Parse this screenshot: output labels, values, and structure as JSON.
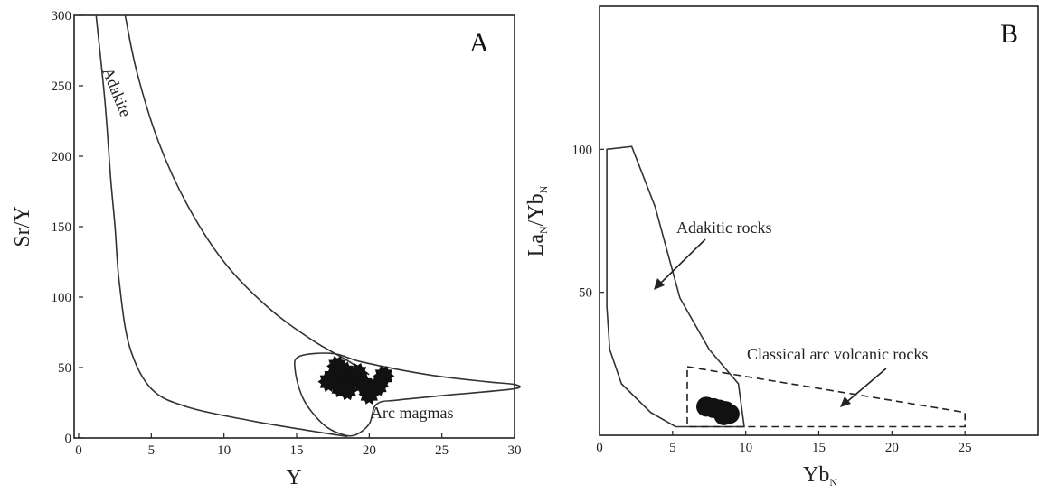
{
  "chart_data": [
    {
      "type": "scatter",
      "panel": "A",
      "xlabel": "Y",
      "ylabel": "Sr/Y",
      "xlim": [
        0,
        30
      ],
      "ylim": [
        0,
        300
      ],
      "xticks": [
        0,
        5,
        10,
        15,
        20,
        25,
        30
      ],
      "yticks": [
        0,
        50,
        100,
        150,
        200,
        250,
        300
      ],
      "grid": false,
      "annotations": [
        {
          "text": "Adakite"
        },
        {
          "text": "Arc magmas"
        }
      ],
      "adakite_field": {
        "upper": [
          [
            3.2,
            300
          ],
          [
            4,
            260
          ],
          [
            5.5,
            210
          ],
          [
            7.5,
            165
          ],
          [
            10,
            125
          ],
          [
            13,
            93
          ],
          [
            16,
            70
          ],
          [
            18.5,
            55
          ],
          [
            20,
            45
          ]
        ],
        "lower": [
          [
            1.2,
            300
          ],
          [
            1.8,
            240
          ],
          [
            2.2,
            185
          ],
          [
            2.5,
            150
          ],
          [
            2.8,
            110
          ],
          [
            3.5,
            65
          ],
          [
            5,
            35
          ],
          [
            7.5,
            22
          ],
          [
            12,
            12
          ],
          [
            16,
            5
          ],
          [
            18.5,
            1
          ]
        ]
      },
      "arc_field": {
        "outline": [
          [
            15.2,
            58
          ],
          [
            17.5,
            60
          ],
          [
            19.5,
            54
          ],
          [
            24,
            45
          ],
          [
            28,
            40
          ],
          [
            30,
            38
          ],
          [
            30,
            35
          ],
          [
            26,
            31
          ],
          [
            22,
            27
          ],
          [
            20.5,
            24
          ],
          [
            20,
            10
          ],
          [
            19,
            2
          ],
          [
            18,
            3
          ],
          [
            16.8,
            10
          ],
          [
            15.5,
            27
          ],
          [
            14.9,
            48
          ]
        ]
      },
      "points": [
        {
          "x": 17.5,
          "y": 43
        },
        {
          "x": 17.8,
          "y": 51
        },
        {
          "x": 18.0,
          "y": 36
        },
        {
          "x": 18.3,
          "y": 47
        },
        {
          "x": 18.8,
          "y": 42
        },
        {
          "x": 19.2,
          "y": 46
        },
        {
          "x": 19.6,
          "y": 38
        },
        {
          "x": 20.0,
          "y": 31
        },
        {
          "x": 20.6,
          "y": 37
        },
        {
          "x": 21.0,
          "y": 44
        },
        {
          "x": 17.2,
          "y": 40
        },
        {
          "x": 18.5,
          "y": 34
        }
      ]
    },
    {
      "type": "scatter",
      "panel": "B",
      "xlabel": "Yb_N",
      "ylabel": "La_N/Yb_N",
      "xlim": [
        0,
        30
      ],
      "ylim": [
        0,
        150
      ],
      "xticks": [
        0,
        5,
        10,
        15,
        20,
        25
      ],
      "yticks": [
        50,
        100
      ],
      "grid": false,
      "annotations": [
        {
          "text": "Adakitic rocks"
        },
        {
          "text": "Classical arc volcanic rocks"
        }
      ],
      "adakitic_field": {
        "outline": [
          [
            0.5,
            100
          ],
          [
            2.2,
            101
          ],
          [
            3.8,
            80
          ],
          [
            5.5,
            48
          ],
          [
            7.5,
            30
          ],
          [
            9.5,
            18
          ],
          [
            9.9,
            3
          ],
          [
            5.2,
            3
          ],
          [
            3.5,
            8
          ],
          [
            1.5,
            18
          ],
          [
            0.7,
            30
          ],
          [
            0.5,
            45
          ]
        ]
      },
      "arc_field": {
        "outline": [
          [
            6,
            24
          ],
          [
            9.5,
            21
          ],
          [
            25,
            8
          ],
          [
            25,
            3
          ],
          [
            6,
            3
          ]
        ]
      },
      "points": [
        {
          "x": 7.3,
          "y": 10
        },
        {
          "x": 7.8,
          "y": 9.5
        },
        {
          "x": 8.2,
          "y": 9
        },
        {
          "x": 8.6,
          "y": 8.5
        },
        {
          "x": 8.5,
          "y": 7
        },
        {
          "x": 8.9,
          "y": 7.5
        }
      ]
    }
  ],
  "panels": {
    "a": {
      "letter": "A",
      "ylabel": "Sr/Y",
      "xlabel": "Y",
      "adakite_label": "Adakite",
      "arc_label": "Arc magmas"
    },
    "b": {
      "letter": "B",
      "ylabel_main": "La",
      "ylabel_sub1": "N",
      "ylabel_mid": "/Yb",
      "ylabel_sub2": "N",
      "xlabel_main": "Yb",
      "xlabel_sub": "N",
      "adakitic_label": "Adakitic rocks",
      "arc_label": "Classical arc volcanic rocks"
    }
  }
}
